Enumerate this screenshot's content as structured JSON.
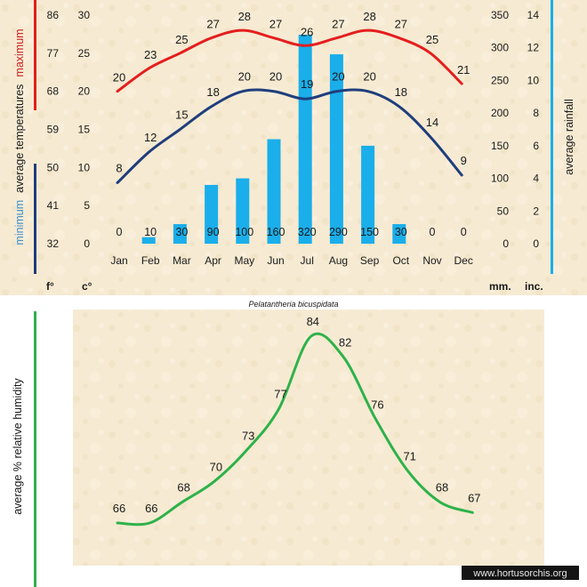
{
  "chart_data": [
    {
      "type": "line+bar",
      "title": "",
      "subtitle": "Pelatantheria bicuspidata",
      "categories": [
        "Jan",
        "Feb",
        "Mar",
        "Apr",
        "May",
        "Jun",
        "Jul",
        "Aug",
        "Sep",
        "Oct",
        "Nov",
        "Dec"
      ],
      "left_axis": {
        "celsius_ticks": [
          "0",
          "5",
          "10",
          "15",
          "20",
          "25",
          "30"
        ],
        "fahrenheit_ticks": [
          "32",
          "41",
          "50",
          "59",
          "68",
          "77",
          "86"
        ],
        "ylim": [
          0,
          30
        ],
        "unit_fahrenheit": "f°",
        "unit_celsius": "c°",
        "label_prefix": "average  temperatures",
        "label_max": "maximum",
        "label_min": "minimum"
      },
      "right_axis": {
        "mm_ticks": [
          "0",
          "50",
          "100",
          "150",
          "200",
          "250",
          "300",
          "350"
        ],
        "inch_ticks": [
          "0",
          "2",
          "4",
          "6",
          "8",
          "10",
          "12",
          "14"
        ],
        "ylim": [
          0,
          350
        ],
        "unit_mm": "mm.",
        "unit_inch": "inc.",
        "label": "average  rainfall"
      },
      "series": [
        {
          "role": "max_temp_c",
          "axis": "left",
          "values": [
            20,
            23,
            25,
            27,
            28,
            27,
            26,
            27,
            28,
            27,
            25,
            21
          ]
        },
        {
          "role": "min_temp_c",
          "axis": "left",
          "values": [
            8,
            12,
            15,
            18,
            20,
            20,
            19,
            20,
            20,
            18,
            14,
            9
          ]
        },
        {
          "role": "rainfall_mm",
          "axis": "right",
          "type": "bar",
          "values": [
            0,
            10,
            30,
            90,
            100,
            160,
            320,
            290,
            150,
            30,
            0,
            0
          ]
        }
      ]
    },
    {
      "type": "line",
      "ylabel": "average %  relative humidity",
      "ylim": [
        60,
        90
      ],
      "series": [
        {
          "values": [
            66,
            66,
            68,
            70,
            73,
            77,
            84,
            82,
            76,
            71,
            68,
            67
          ]
        }
      ]
    }
  ],
  "colors": {
    "max_line": "#e41e1e",
    "min_line": "#1f3e7c",
    "rain_bar": "#1aaeea",
    "humidity_line": "#2eb24a",
    "left_label_max": "#cc1f1f",
    "left_label_min": "#3d90d0",
    "axis_text": "#1a1a1a"
  },
  "watermark": "www.hortusorchis.org"
}
